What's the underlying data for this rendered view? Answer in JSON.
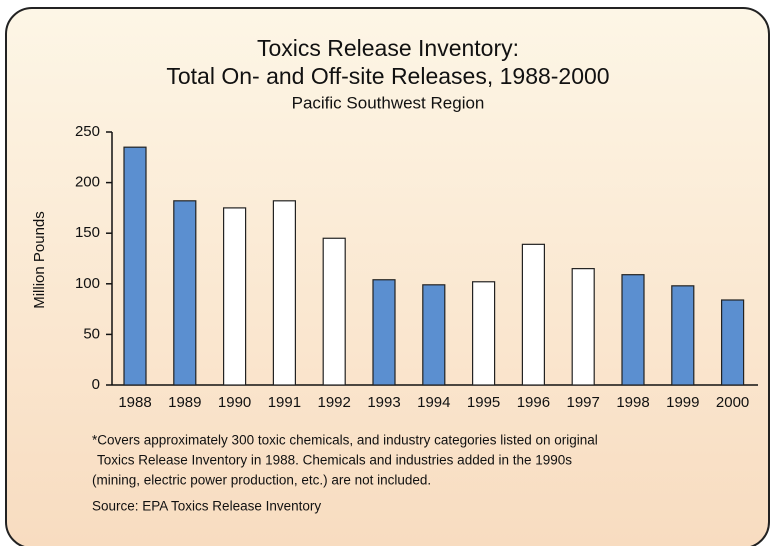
{
  "chart_data": {
    "type": "bar",
    "title": [
      "Toxics Release Inventory:",
      "Total On- and Off-site Releases, 1988-2000"
    ],
    "subtitle": "Pacific Southwest Region",
    "ylabel": "Million Pounds",
    "categories": [
      "1988",
      "1989",
      "1990",
      "1991",
      "1992",
      "1993",
      "1994",
      "1995",
      "1996",
      "1997",
      "1998",
      "1999",
      "2000"
    ],
    "values": [
      235,
      182,
      175,
      182,
      145,
      104,
      99,
      102,
      139,
      115,
      109,
      98,
      84
    ],
    "colors": [
      "#5b8fd0",
      "#5b8fd0",
      "#ffffff",
      "#ffffff",
      "#ffffff",
      "#5b8fd0",
      "#5b8fd0",
      "#ffffff",
      "#ffffff",
      "#ffffff",
      "#5b8fd0",
      "#5b8fd0",
      "#5b8fd0"
    ],
    "ylim": [
      0,
      250
    ],
    "yticks": [
      0,
      50,
      100,
      150,
      200,
      250
    ],
    "notes": [
      "*Covers approximately 300 toxic chemicals, and industry categories listed on original",
      "Toxics Release Inventory in 1988. Chemicals and industries added in the 1990s",
      "(mining, electric power production, etc.) are not included."
    ],
    "source": "Source: EPA Toxics Release Inventory"
  }
}
